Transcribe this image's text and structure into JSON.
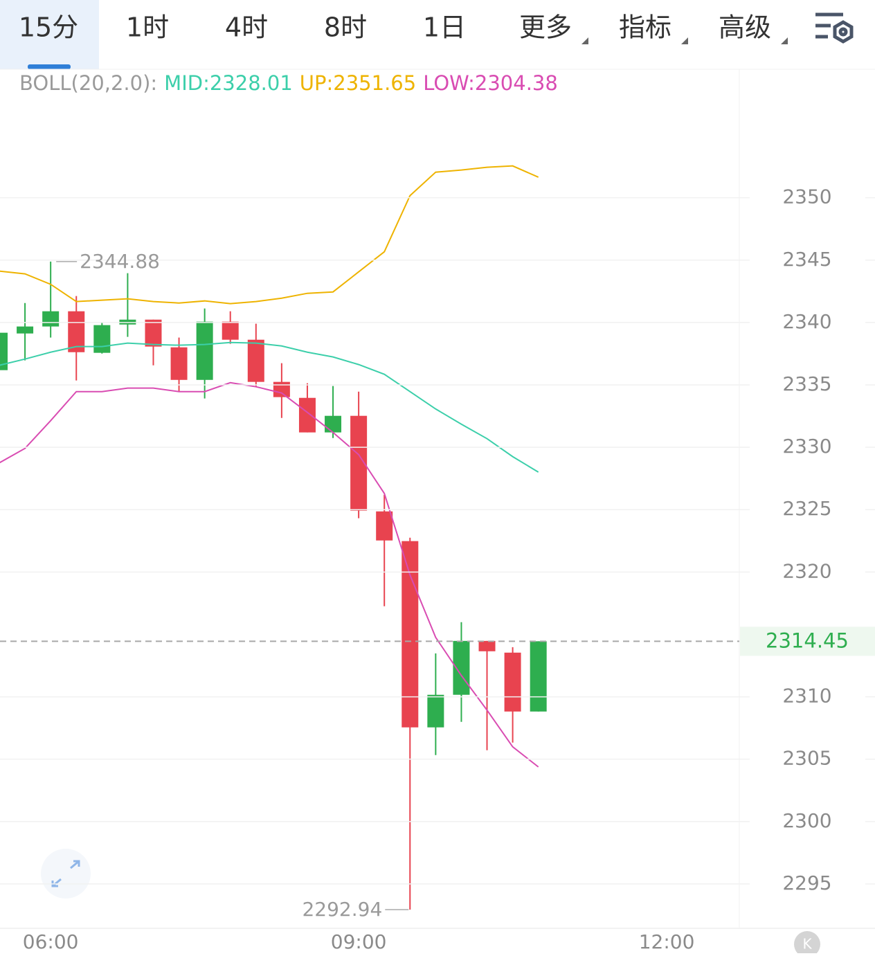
{
  "tabs": [
    "15分",
    "1时",
    "4时",
    "8时",
    "1日",
    "更多",
    "指标",
    "高级"
  ],
  "chart_data": {
    "type": "candlestick",
    "indicator": "BOLL(20,2.0):",
    "categories": [
      null,
      null,
      "06:00",
      null,
      null,
      null,
      null,
      null,
      null,
      null,
      null,
      null,
      null,
      null,
      "09:00",
      null,
      null,
      null,
      null,
      null,
      null,
      null,
      null,
      null,
      null,
      null,
      "12:00"
    ],
    "open": [
      2336.18,
      2339.12,
      2339.68,
      2340.9,
      2337.57,
      2339.84,
      2340.23,
      2338.01,
      2335.4,
      2340.07,
      2338.62,
      2335.24,
      2333.96,
      2331.19,
      2332.52,
      2324.86,
      2322.48,
      2307.55,
      2310.16,
      2314.48,
      2313.54,
      2308.82,
      null,
      null,
      null,
      null,
      null
    ],
    "high": [
      2339.73,
      2341.56,
      2344.88,
      2342.12,
      2340.01,
      2343.95,
      2340.23,
      2338.79,
      2341.12,
      2340.9,
      2339.9,
      2336.74,
      2335.13,
      2334.91,
      2334.46,
      2326.19,
      2322.75,
      2313.48,
      2315.98,
      2314.48,
      2313.98,
      2314.45,
      null,
      null,
      null,
      null,
      null
    ],
    "low": [
      2335.85,
      2336.96,
      2338.79,
      2335.35,
      2337.51,
      2338.85,
      2336.57,
      2334.46,
      2333.91,
      2338.29,
      2334.85,
      2332.35,
      2331.19,
      2330.74,
      2324.31,
      2317.26,
      2292.94,
      2305.33,
      2307.99,
      2305.72,
      2306.33,
      2308.82,
      null,
      null,
      null,
      null,
      null
    ],
    "close": [
      2339.18,
      2339.68,
      2340.9,
      2337.62,
      2339.79,
      2340.23,
      2338.07,
      2335.4,
      2340.07,
      2338.62,
      2335.24,
      2334.02,
      2331.19,
      2332.52,
      2324.92,
      2322.53,
      2307.55,
      2310.16,
      2314.48,
      2313.65,
      2308.82,
      2314.45,
      null,
      null,
      null,
      null,
      null
    ],
    "up_color": "#2eae4f",
    "down_color": "#e8434f",
    "series": [
      {
        "name": "MID:2328.01",
        "color": "#3ccfaa",
        "values": [
          2336.57,
          2337.07,
          2337.62,
          2338.07,
          2338.07,
          2338.35,
          2338.24,
          2338.18,
          2338.24,
          2338.4,
          2338.35,
          2338.12,
          2337.62,
          2337.24,
          2336.63,
          2335.85,
          2334.46,
          2333.07,
          2331.85,
          2330.69,
          2329.25,
          2328.01,
          null,
          null,
          null,
          null,
          null
        ]
      },
      {
        "name": "UP:2351.65",
        "color": "#eeb300",
        "values": [
          2344.12,
          2343.9,
          2343.06,
          2341.68,
          2341.79,
          2341.9,
          2341.68,
          2341.56,
          2341.73,
          2341.51,
          2341.68,
          2341.95,
          2342.34,
          2342.45,
          2344.06,
          2345.67,
          2350.17,
          2352.05,
          2352.22,
          2352.44,
          2352.55,
          2351.65,
          null,
          null,
          null,
          null,
          null
        ]
      },
      {
        "name": "LOW:2304.38",
        "color": "#d94cb2",
        "values": [
          2328.75,
          2329.91,
          2332.13,
          2334.46,
          2334.46,
          2334.74,
          2334.74,
          2334.46,
          2334.46,
          2335.18,
          2334.85,
          2334.35,
          2332.8,
          2331.19,
          2329.41,
          2326.3,
          2319.76,
          2314.76,
          2311.71,
          2308.93,
          2305.99,
          2304.38,
          null,
          null,
          null,
          null,
          null
        ]
      }
    ],
    "current_price": 2314.45,
    "ylim": [
      2291.5,
      2360.3
    ],
    "yticks": [
      2295,
      2300,
      2305,
      2310,
      2320,
      2325,
      2330,
      2335,
      2340,
      2345,
      2350
    ],
    "grid": true
  }
}
